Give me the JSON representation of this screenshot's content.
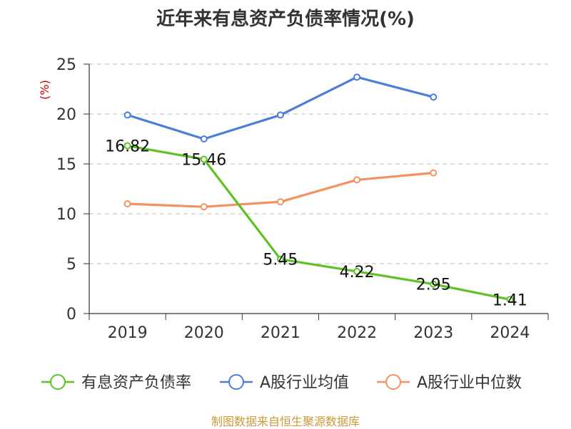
{
  "chart_data": {
    "type": "line",
    "title": "近年来有息资产负债率情况(%)",
    "ylabel": "(%)",
    "xlabel": "",
    "categories": [
      "2019",
      "2020",
      "2021",
      "2022",
      "2023",
      "2024"
    ],
    "ylim": [
      0,
      25
    ],
    "yticks": [
      0,
      5,
      10,
      15,
      20,
      25
    ],
    "grid": true,
    "legend": "bottom",
    "series": [
      {
        "name": "有息资产负债率",
        "color": "#5ec224",
        "values": [
          16.82,
          15.46,
          5.45,
          4.22,
          2.95,
          1.41
        ],
        "labels": [
          "16.82",
          "15.46",
          "5.45",
          "4.22",
          "2.95",
          "1.41"
        ]
      },
      {
        "name": "A股行业均值",
        "color": "#4a7ed9",
        "values": [
          19.9,
          17.5,
          19.9,
          23.7,
          21.7,
          null
        ]
      },
      {
        "name": "A股行业中位数",
        "color": "#f39260",
        "values": [
          11.0,
          10.7,
          11.2,
          13.4,
          14.1,
          null
        ]
      }
    ]
  },
  "footer": {
    "source": "制图数据来自恒生聚源数据库"
  }
}
